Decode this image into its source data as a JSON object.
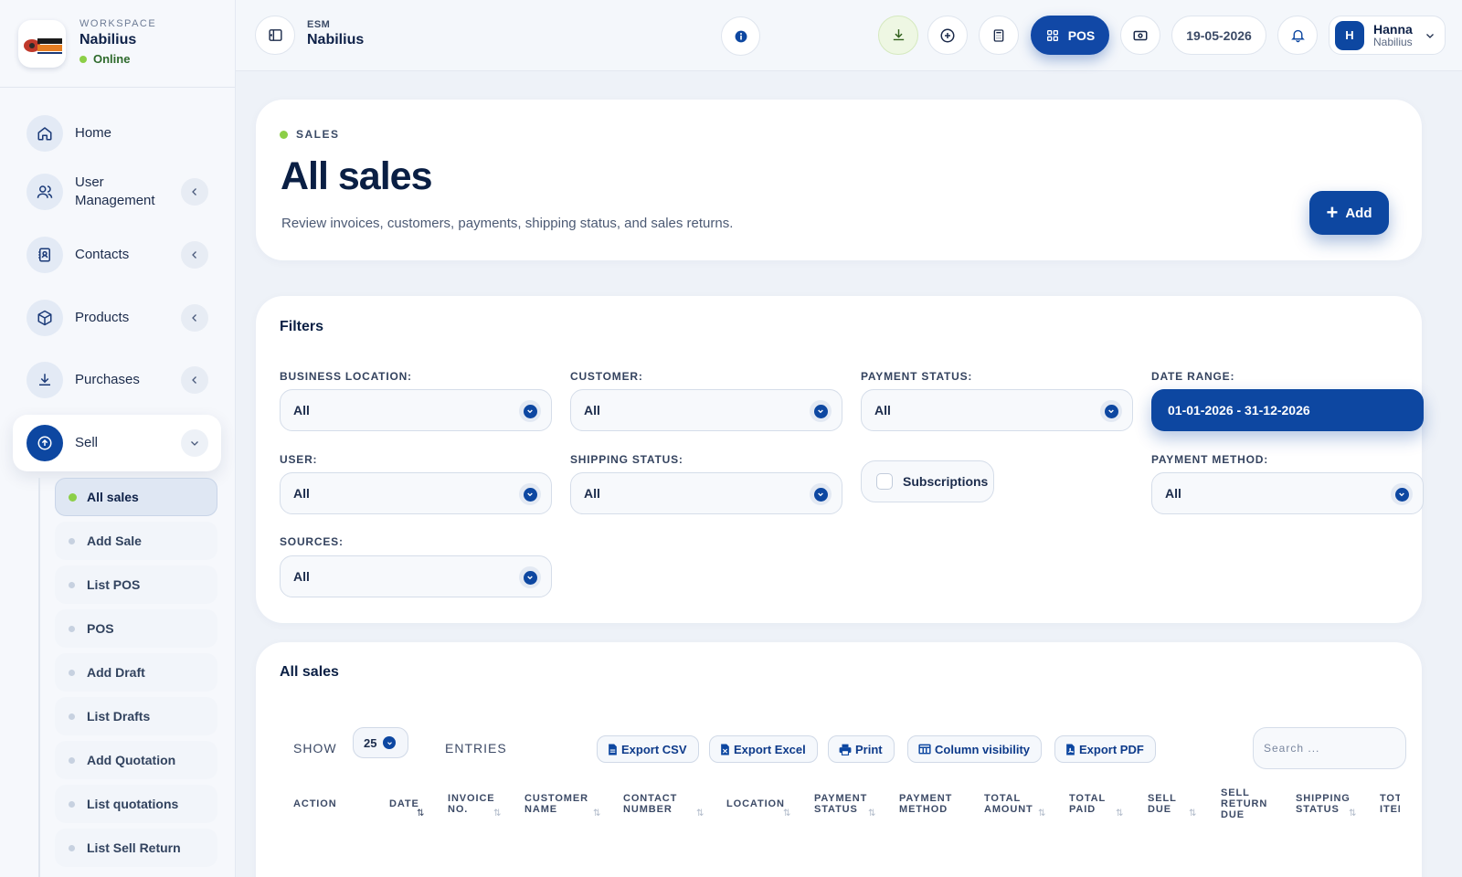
{
  "workspace": {
    "label": "WORKSPACE",
    "name": "Nabilius",
    "status": "Online",
    "logo_text": "NABILIUS",
    "logo_small": "AUTOMATION"
  },
  "sidebar": {
    "items": [
      {
        "label": "Home",
        "icon": "home-icon"
      },
      {
        "label": "User Management",
        "icon": "users-icon"
      },
      {
        "label": "Contacts",
        "icon": "contacts-icon"
      },
      {
        "label": "Products",
        "icon": "box-icon"
      },
      {
        "label": "Purchases",
        "icon": "download-icon"
      },
      {
        "label": "Sell",
        "icon": "upload-icon"
      }
    ],
    "sub_items": [
      "All sales",
      "Add Sale",
      "List POS",
      "POS",
      "Add Draft",
      "List Drafts",
      "Add Quotation",
      "List quotations",
      "List Sell Return"
    ]
  },
  "header": {
    "app_small": "ESM",
    "app_name": "Nabilius",
    "pos_label": "POS",
    "date": "19-05-2026",
    "user": {
      "initial": "H",
      "name": "Hanna",
      "org": "Nabilius"
    }
  },
  "hero": {
    "eyebrow": "SALES",
    "title": "All sales",
    "subtitle": "Review invoices, customers, payments, shipping status, and sales returns.",
    "add_label": "Add"
  },
  "filters": {
    "title": "Filters",
    "business_location": {
      "label": "BUSINESS LOCATION:",
      "value": "All"
    },
    "customer": {
      "label": "CUSTOMER:",
      "value": "All"
    },
    "payment_status": {
      "label": "PAYMENT STATUS:",
      "value": "All"
    },
    "date_range": {
      "label": "DATE RANGE:",
      "value": "01-01-2026 - 31-12-2026"
    },
    "user": {
      "label": "USER:",
      "value": "All"
    },
    "shipping_status": {
      "label": "SHIPPING STATUS:",
      "value": "All"
    },
    "subscriptions": {
      "label": "Subscriptions",
      "checked": false
    },
    "payment_method": {
      "label": "PAYMENT METHOD:",
      "value": "All"
    },
    "sources": {
      "label": "SOURCES:",
      "value": "All"
    }
  },
  "table": {
    "title": "All sales",
    "show_label": "SHOW",
    "entries_label": "ENTRIES",
    "page_length": "25",
    "buttons": {
      "csv": "Export CSV",
      "excel": "Export Excel",
      "print": "Print",
      "colvis": "Column visibility",
      "pdf": "Export PDF"
    },
    "search_placeholder": "Search ...",
    "columns": [
      [
        "ACTION"
      ],
      [
        "DATE"
      ],
      [
        "INVOICE",
        "NO."
      ],
      [
        "CUSTOMER",
        "NAME"
      ],
      [
        "CONTACT",
        "NUMBER"
      ],
      [
        "LOCATION"
      ],
      [
        "PAYMENT",
        "STATUS"
      ],
      [
        "PAYMENT",
        "METHOD"
      ],
      [
        "TOTAL",
        "AMOUNT"
      ],
      [
        "TOTAL",
        "PAID"
      ],
      [
        "SELL",
        "DUE"
      ],
      [
        "SELL",
        "RETURN",
        "DUE"
      ],
      [
        "SHIPPING",
        "STATUS"
      ],
      [
        "TOTAL",
        "ITEMS"
      ]
    ]
  },
  "colors": {
    "primary": "#0d47a1",
    "accent_green": "#8ccf47",
    "background": "#eef2f8"
  }
}
